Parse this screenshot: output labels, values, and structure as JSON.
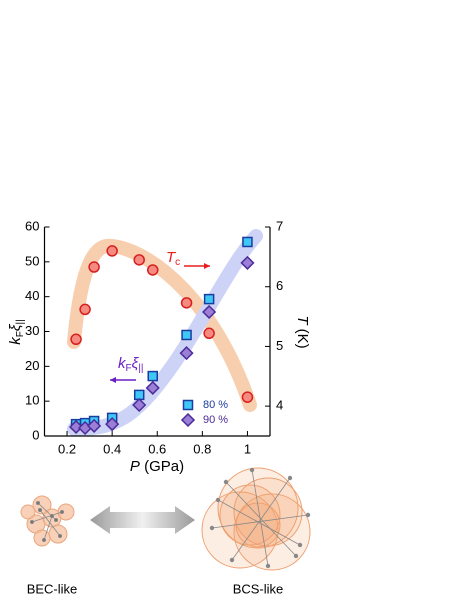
{
  "chart_data": {
    "type": "scatter",
    "x_label": [
      "P",
      " (GPa)"
    ],
    "y_label": [
      "k",
      "F",
      "ξ",
      "||"
    ],
    "y2_label": [
      "T",
      " (K)"
    ],
    "x": [
      0.24,
      0.28,
      0.32,
      0.4,
      0.52,
      0.58,
      0.73,
      0.83,
      1.0
    ],
    "series": [
      {
        "name": "80 %",
        "marker": "square",
        "color": "#3fc8f5",
        "edge": "#1a3b9f",
        "values": [
          3.4,
          3.7,
          4.3,
          5.2,
          11.8,
          17.2,
          29.0,
          39.3,
          55.7
        ]
      },
      {
        "name": "90 %",
        "marker": "diamond",
        "color": "#9b7fd6",
        "edge": "#4b2a9a",
        "values": [
          2.6,
          2.3,
          2.9,
          3.4,
          8.9,
          13.8,
          23.8,
          35.6,
          49.7
        ]
      },
      {
        "marker": "circle",
        "color": "#f58a80",
        "edge": "#d71f1f",
        "axis": "y2",
        "values": [
          5.12,
          5.62,
          6.33,
          6.6,
          6.45,
          6.28,
          5.73,
          5.22,
          4.15
        ]
      }
    ],
    "annotations": [
      {
        "text": [
          "T",
          "c"
        ],
        "color": "#e8201b"
      },
      {
        "text": [
          "k",
          "F",
          "ξ",
          "||"
        ],
        "color": "#6a1fc2"
      }
    ],
    "xlim": [
      0.1,
      1.1
    ],
    "xticks": [
      0.2,
      0.4,
      0.6,
      0.8,
      1.0
    ],
    "ylim": [
      0,
      60
    ],
    "yticks": [
      0,
      10,
      20,
      30,
      40,
      50,
      60
    ],
    "y2lim": [
      3.5,
      7
    ],
    "y2ticks": [
      4,
      5,
      6,
      7
    ]
  },
  "diagram": {
    "left_label": "BEC-like",
    "right_label": "BCS-like"
  }
}
